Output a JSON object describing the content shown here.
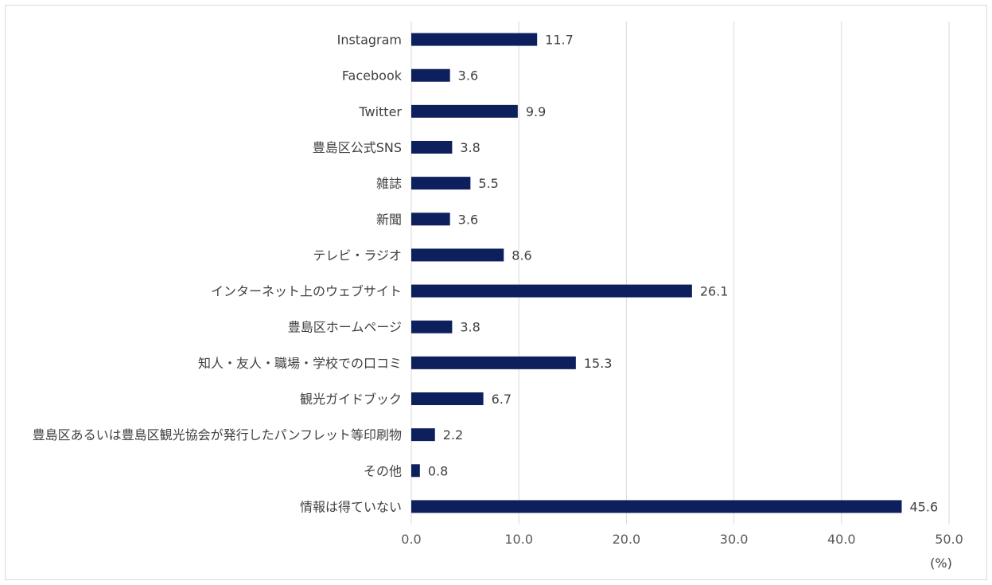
{
  "chart_data": {
    "type": "bar",
    "orientation": "horizontal",
    "categories": [
      "Instagram",
      "Facebook",
      "Twitter",
      "豊島区公式SNS",
      "雑誌",
      "新聞",
      "テレビ・ラジオ",
      "インターネット上のウェブサイト",
      "豊島区ホームページ",
      "知人・友人・職場・学校での口コミ",
      "観光ガイドブック",
      "豊島区あるいは豊島区観光協会が発行したパンフレット等印刷物",
      "その他",
      "情報は得ていない"
    ],
    "values": [
      11.7,
      3.6,
      9.9,
      3.8,
      5.5,
      3.6,
      8.6,
      26.1,
      3.8,
      15.3,
      6.7,
      2.2,
      0.8,
      45.6
    ],
    "value_labels": [
      "11.7",
      "3.6",
      "9.9",
      "3.8",
      "5.5",
      "3.6",
      "8.6",
      "26.1",
      "3.8",
      "15.3",
      "6.7",
      "2.2",
      "0.8",
      "45.6"
    ],
    "xlim": [
      0,
      50
    ],
    "xticks": [
      "0.0",
      "10.0",
      "20.0",
      "30.0",
      "40.0",
      "50.0"
    ],
    "xunit": "(%)",
    "grid": "vertical",
    "bar_color": "#0d1f5c",
    "grid_color": "#d9d9d9"
  }
}
